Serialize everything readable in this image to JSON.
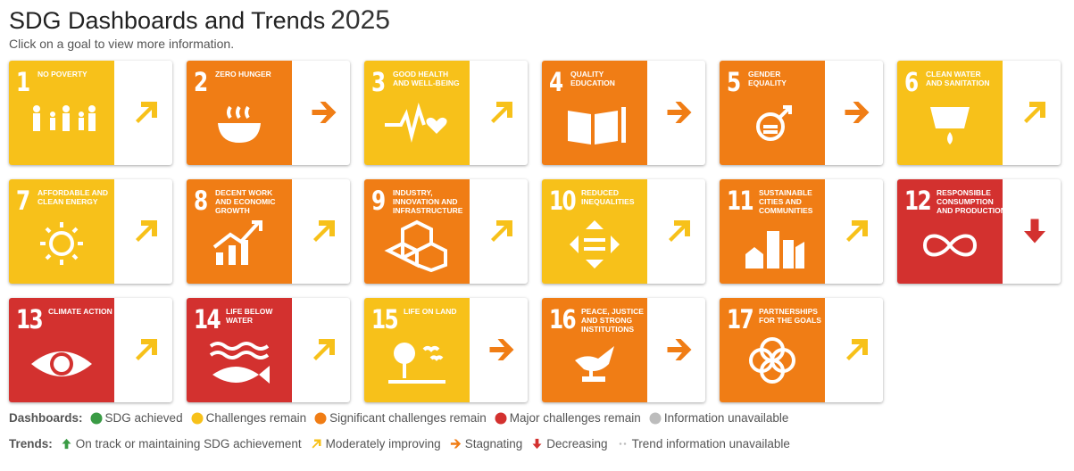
{
  "header": {
    "title": "SDG Dashboards and Trends",
    "year": "2025",
    "subtitle": "Click on a goal to view more information."
  },
  "goals": [
    {
      "number": 1,
      "label": "NO POVERTY",
      "dashboard": "Challenges remain",
      "trend": "Moderately improving"
    },
    {
      "number": 2,
      "label": "ZERO HUNGER",
      "dashboard": "Significant challenges remain",
      "trend": "Stagnating"
    },
    {
      "number": 3,
      "label": "GOOD HEALTH AND WELL-BEING",
      "dashboard": "Challenges remain",
      "trend": "Moderately improving"
    },
    {
      "number": 4,
      "label": "QUALITY EDUCATION",
      "dashboard": "Significant challenges remain",
      "trend": "Stagnating"
    },
    {
      "number": 5,
      "label": "GENDER EQUALITY",
      "dashboard": "Significant challenges remain",
      "trend": "Stagnating"
    },
    {
      "number": 6,
      "label": "CLEAN WATER AND SANITATION",
      "dashboard": "Challenges remain",
      "trend": "Moderately improving"
    },
    {
      "number": 7,
      "label": "AFFORDABLE AND CLEAN ENERGY",
      "dashboard": "Challenges remain",
      "trend": "Moderately improving"
    },
    {
      "number": 8,
      "label": "DECENT WORK AND ECONOMIC GROWTH",
      "dashboard": "Significant challenges remain",
      "trend": "Moderately improving"
    },
    {
      "number": 9,
      "label": "INDUSTRY, INNOVATION AND INFRASTRUCTURE",
      "dashboard": "Significant challenges remain",
      "trend": "Moderately improving"
    },
    {
      "number": 10,
      "label": "REDUCED INEQUALITIES",
      "dashboard": "Challenges remain",
      "trend": "Moderately improving"
    },
    {
      "number": 11,
      "label": "SUSTAINABLE CITIES AND COMMUNITIES",
      "dashboard": "Significant challenges remain",
      "trend": "Moderately improving"
    },
    {
      "number": 12,
      "label": "RESPONSIBLE CONSUMPTION AND PRODUCTION",
      "dashboard": "Major challenges remain",
      "trend": "Decreasing"
    },
    {
      "number": 13,
      "label": "CLIMATE ACTION",
      "dashboard": "Major challenges remain",
      "trend": "Moderately improving"
    },
    {
      "number": 14,
      "label": "LIFE BELOW WATER",
      "dashboard": "Major challenges remain",
      "trend": "Moderately improving"
    },
    {
      "number": 15,
      "label": "LIFE ON LAND",
      "dashboard": "Challenges remain",
      "trend": "Stagnating"
    },
    {
      "number": 16,
      "label": "PEACE, JUSTICE AND STRONG INSTITUTIONS",
      "dashboard": "Significant challenges remain",
      "trend": "Stagnating"
    },
    {
      "number": 17,
      "label": "PARTNERSHIPS FOR THE GOALS",
      "dashboard": "Significant challenges remain",
      "trend": "Moderately improving"
    }
  ],
  "legend": {
    "dashboards": {
      "title": "Dashboards:",
      "items": [
        {
          "label": "SDG achieved",
          "color": "#3a9b45"
        },
        {
          "label": "Challenges remain",
          "color": "#f7c11a"
        },
        {
          "label": "Significant challenges remain",
          "color": "#f07d15"
        },
        {
          "label": "Major challenges remain",
          "color": "#d3312f"
        },
        {
          "label": "Information unavailable",
          "color": "#bcbcbc"
        }
      ]
    },
    "trends": {
      "title": "Trends:",
      "items": [
        {
          "label": "On track or maintaining SDG achievement",
          "color": "#3a9b45",
          "arrow": "up"
        },
        {
          "label": "Moderately improving",
          "color": "#f7c11a",
          "arrow": "up-right"
        },
        {
          "label": "Stagnating",
          "color": "#f07d15",
          "arrow": "right"
        },
        {
          "label": "Decreasing",
          "color": "#d3312f",
          "arrow": "down"
        },
        {
          "label": "Trend information unavailable",
          "color": "#bcbcbc",
          "arrow": "dots"
        }
      ]
    }
  }
}
